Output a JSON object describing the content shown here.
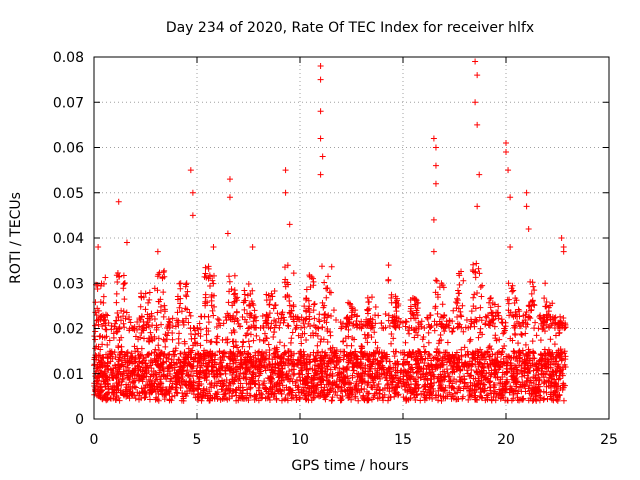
{
  "chart_data": {
    "type": "scatter",
    "title": "Day 234 of 2020, Rate Of TEC Index for receiver hlfx",
    "xlabel": "GPS time / hours",
    "ylabel": "ROTI / TECUs",
    "xlim": [
      0,
      25
    ],
    "ylim": [
      0,
      0.08
    ],
    "xticks": [
      "0",
      "5",
      "10",
      "15",
      "20",
      "25"
    ],
    "yticks": [
      "0",
      "0.01",
      "0.02",
      "0.03",
      "0.04",
      "0.05",
      "0.06",
      "0.07",
      "0.08"
    ],
    "grid": true,
    "marker": "+",
    "color": "#ff0000",
    "series": [
      {
        "name": "ROTI",
        "x_range": [
          0,
          22.9
        ],
        "baseline_low": 0.002,
        "baseline_mid": 0.009,
        "baseline_high": 0.02,
        "notable_points": [
          {
            "x": 0.2,
            "y": 0.038
          },
          {
            "x": 1.2,
            "y": 0.048
          },
          {
            "x": 1.6,
            "y": 0.039
          },
          {
            "x": 3.1,
            "y": 0.037
          },
          {
            "x": 4.5,
            "y": 0.03
          },
          {
            "x": 4.7,
            "y": 0.055
          },
          {
            "x": 4.8,
            "y": 0.05
          },
          {
            "x": 4.8,
            "y": 0.045
          },
          {
            "x": 5.8,
            "y": 0.038
          },
          {
            "x": 6.6,
            "y": 0.053
          },
          {
            "x": 6.6,
            "y": 0.049
          },
          {
            "x": 6.5,
            "y": 0.041
          },
          {
            "x": 7.7,
            "y": 0.038
          },
          {
            "x": 9.3,
            "y": 0.055
          },
          {
            "x": 9.3,
            "y": 0.05
          },
          {
            "x": 9.5,
            "y": 0.043
          },
          {
            "x": 11.0,
            "y": 0.078
          },
          {
            "x": 11.0,
            "y": 0.075
          },
          {
            "x": 11.0,
            "y": 0.068
          },
          {
            "x": 11.0,
            "y": 0.062
          },
          {
            "x": 11.1,
            "y": 0.058
          },
          {
            "x": 11.0,
            "y": 0.054
          },
          {
            "x": 14.3,
            "y": 0.034
          },
          {
            "x": 16.5,
            "y": 0.062
          },
          {
            "x": 16.6,
            "y": 0.06
          },
          {
            "x": 16.6,
            "y": 0.056
          },
          {
            "x": 16.6,
            "y": 0.052
          },
          {
            "x": 16.5,
            "y": 0.044
          },
          {
            "x": 16.5,
            "y": 0.037
          },
          {
            "x": 18.5,
            "y": 0.079
          },
          {
            "x": 18.6,
            "y": 0.076
          },
          {
            "x": 18.5,
            "y": 0.07
          },
          {
            "x": 18.6,
            "y": 0.065
          },
          {
            "x": 18.7,
            "y": 0.054
          },
          {
            "x": 18.6,
            "y": 0.047
          },
          {
            "x": 20.0,
            "y": 0.061
          },
          {
            "x": 20.0,
            "y": 0.059
          },
          {
            "x": 20.1,
            "y": 0.055
          },
          {
            "x": 20.2,
            "y": 0.049
          },
          {
            "x": 20.2,
            "y": 0.038
          },
          {
            "x": 21.0,
            "y": 0.05
          },
          {
            "x": 21.0,
            "y": 0.047
          },
          {
            "x": 21.1,
            "y": 0.042
          },
          {
            "x": 21.9,
            "y": 0.03
          },
          {
            "x": 22.7,
            "y": 0.04
          },
          {
            "x": 22.8,
            "y": 0.038
          },
          {
            "x": 22.8,
            "y": 0.037
          }
        ],
        "cluster_peaks": [
          {
            "x": 0.3,
            "y": 0.032
          },
          {
            "x": 1.3,
            "y": 0.033
          },
          {
            "x": 2.5,
            "y": 0.028
          },
          {
            "x": 3.2,
            "y": 0.033
          },
          {
            "x": 4.3,
            "y": 0.03
          },
          {
            "x": 5.6,
            "y": 0.034
          },
          {
            "x": 6.7,
            "y": 0.033
          },
          {
            "x": 7.5,
            "y": 0.03
          },
          {
            "x": 8.6,
            "y": 0.029
          },
          {
            "x": 9.5,
            "y": 0.034
          },
          {
            "x": 10.5,
            "y": 0.032
          },
          {
            "x": 11.3,
            "y": 0.034
          },
          {
            "x": 12.5,
            "y": 0.026
          },
          {
            "x": 13.5,
            "y": 0.027
          },
          {
            "x": 14.5,
            "y": 0.031
          },
          {
            "x": 15.5,
            "y": 0.027
          },
          {
            "x": 16.8,
            "y": 0.031
          },
          {
            "x": 17.7,
            "y": 0.033
          },
          {
            "x": 18.6,
            "y": 0.035
          },
          {
            "x": 19.4,
            "y": 0.028
          },
          {
            "x": 20.3,
            "y": 0.032
          },
          {
            "x": 21.2,
            "y": 0.031
          },
          {
            "x": 22.0,
            "y": 0.027
          },
          {
            "x": 22.6,
            "y": 0.022
          }
        ]
      }
    ]
  }
}
